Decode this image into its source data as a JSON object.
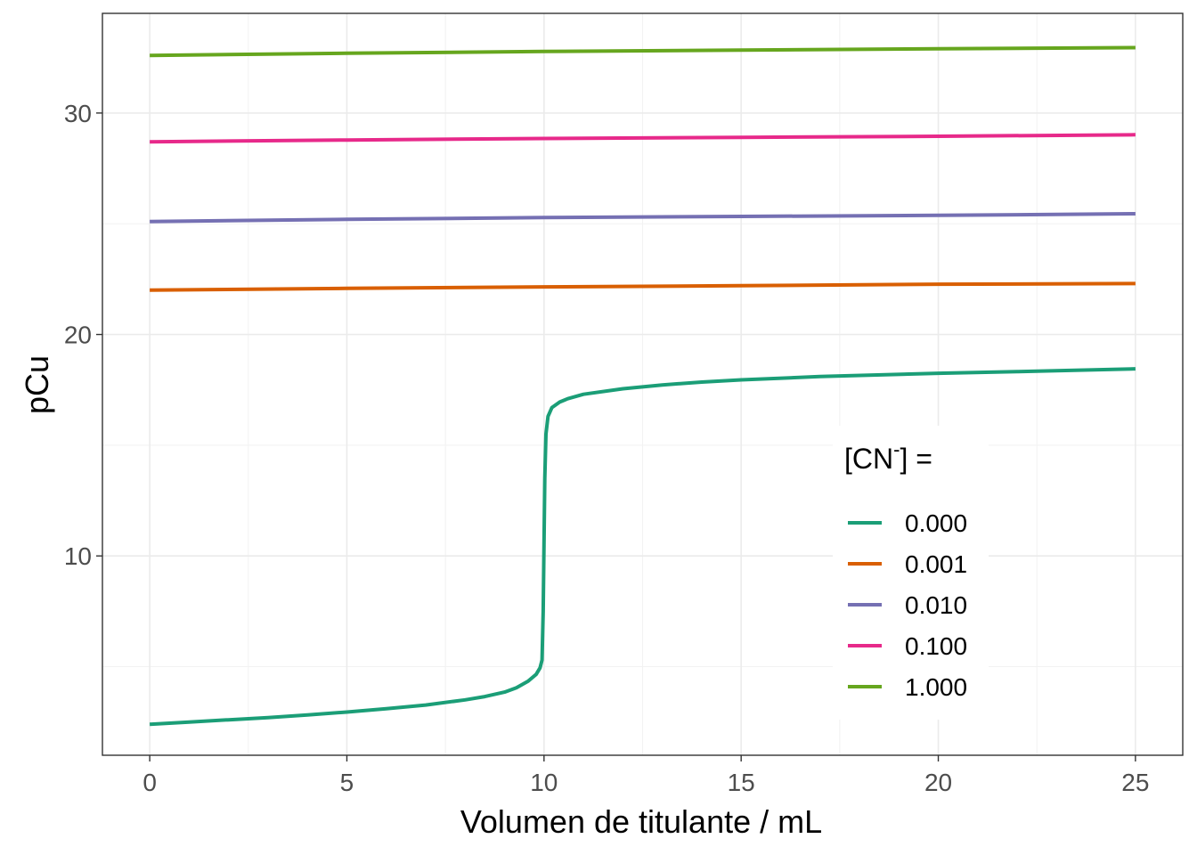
{
  "chart_data": {
    "type": "line",
    "xlabel": "Volumen de titulante / mL",
    "ylabel": "pCu",
    "xlim": [
      -1.2,
      26.2
    ],
    "ylim": [
      1.0,
      34.5
    ],
    "x_ticks": [
      0,
      5,
      10,
      15,
      20,
      25
    ],
    "x_tick_labels": [
      "0",
      "5",
      "10",
      "15",
      "20",
      "25"
    ],
    "y_ticks": [
      10,
      20,
      30
    ],
    "y_tick_labels": [
      "10",
      "20",
      "30"
    ],
    "y_minor_ticks": [
      5,
      15,
      25
    ],
    "x_minor_ticks": [
      2.5,
      7.5,
      12.5,
      17.5,
      22.5
    ],
    "grid": true,
    "legend": {
      "title_main": "[CN",
      "title_sup": "-",
      "title_end": "] =",
      "position": "right-inside"
    },
    "series": [
      {
        "name": "0.000",
        "color": "#1b9e77",
        "x": [
          0,
          1,
          2,
          3,
          4,
          5,
          6,
          7,
          8,
          8.5,
          9,
          9.3,
          9.6,
          9.8,
          9.9,
          9.95,
          9.98,
          10.0,
          10.02,
          10.05,
          10.1,
          10.2,
          10.4,
          10.6,
          11,
          12,
          13,
          14,
          15,
          17,
          20,
          22,
          25
        ],
        "y": [
          2.4,
          2.5,
          2.6,
          2.7,
          2.82,
          2.95,
          3.1,
          3.27,
          3.5,
          3.65,
          3.85,
          4.05,
          4.35,
          4.65,
          4.95,
          5.3,
          7.5,
          10.5,
          13.5,
          15.5,
          16.3,
          16.7,
          16.95,
          17.1,
          17.3,
          17.55,
          17.72,
          17.85,
          17.95,
          18.1,
          18.25,
          18.32,
          18.45
        ]
      },
      {
        "name": "0.001",
        "color": "#d95f02",
        "x": [
          0,
          5,
          10,
          15,
          20,
          25
        ],
        "y": [
          22.0,
          22.08,
          22.15,
          22.2,
          22.27,
          22.3
        ]
      },
      {
        "name": "0.010",
        "color": "#7570b3",
        "x": [
          0,
          5,
          10,
          15,
          20,
          25
        ],
        "y": [
          25.1,
          25.2,
          25.28,
          25.33,
          25.38,
          25.45
        ]
      },
      {
        "name": "0.100",
        "color": "#e7298a",
        "x": [
          0,
          5,
          10,
          15,
          20,
          25
        ],
        "y": [
          28.7,
          28.78,
          28.85,
          28.9,
          28.95,
          29.02
        ]
      },
      {
        "name": "1.000",
        "color": "#66a61e",
        "x": [
          0,
          5,
          10,
          15,
          20,
          25
        ],
        "y": [
          32.6,
          32.7,
          32.78,
          32.84,
          32.9,
          32.95
        ]
      }
    ]
  }
}
